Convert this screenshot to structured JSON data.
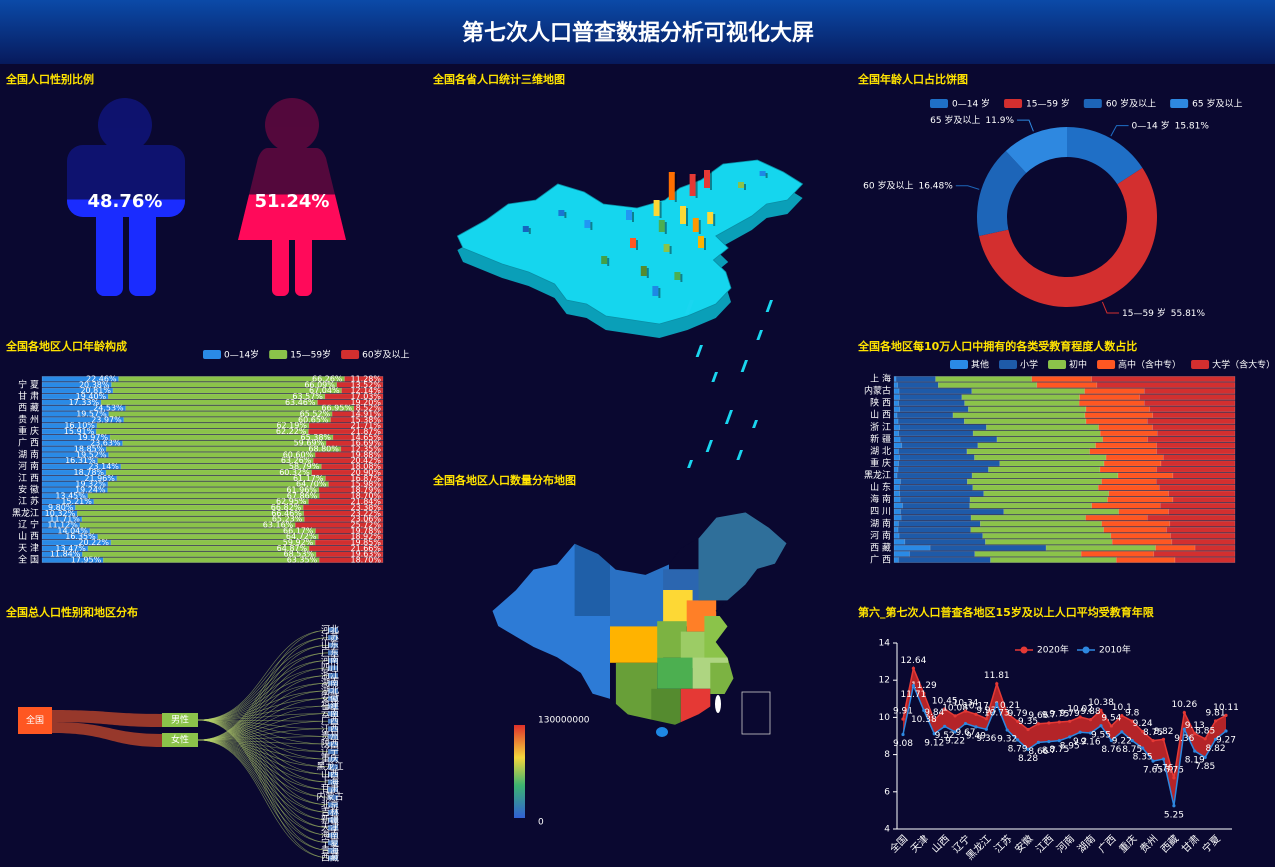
{
  "page_title": "第七次人口普查数据分析可视化大屏",
  "chart_data": [
    {
      "type": "pictorial",
      "title": "全国人口性别比例",
      "values": [
        48.76,
        51.24
      ],
      "value_labels": [
        "48.76%",
        "51.24%"
      ],
      "colors": [
        "#1a2cff",
        "#ff0a5a"
      ]
    },
    {
      "type": "map3d",
      "title": "全国各省人口统计三维地图"
    },
    {
      "type": "pie",
      "title": "全国年龄人口占比饼图",
      "categories": [
        "0—14 岁",
        "15—59 岁",
        "60 岁及以上",
        "65 岁及以上"
      ],
      "values": [
        15.81,
        55.81,
        16.48,
        11.9
      ],
      "value_labels": [
        "15.81%",
        "55.81%",
        "16.48%",
        "11.9%"
      ],
      "colors": [
        "#1f6fc6",
        "#d32f2f",
        "#1d65b8",
        "#2e88e0"
      ]
    },
    {
      "type": "stacked_hbar",
      "title": "全国各地区人口年龄构成",
      "xlim": [
        0,
        100
      ],
      "categories": [
        "全 国",
        null,
        "天 津",
        null,
        "山 西",
        null,
        "辽 宁",
        null,
        "黑龙江",
        null,
        "江 苏",
        null,
        "安 徽",
        null,
        "江 西",
        null,
        "河 南",
        null,
        "湖 南",
        null,
        "广 西",
        null,
        "重 庆",
        null,
        "贵 州",
        null,
        "西 藏",
        null,
        "甘 肃",
        null,
        "宁 夏",
        null
      ],
      "series": [
        {
          "name": "0—14岁",
          "color": "#2a8ae6",
          "values": [
            17.95,
            11.84,
            13.47,
            20.22,
            16.35,
            14.04,
            11.12,
            11.71,
            10.32,
            9.8,
            15.21,
            13.45,
            19.24,
            19.32,
            21.96,
            18.78,
            23.14,
            16.31,
            19.52,
            18.85,
            23.63,
            19.97,
            15.91,
            16.1,
            23.97,
            19.57,
            24.53,
            17.33,
            19.4,
            20.81,
            20.38,
            22.46
          ],
          "value_labels": [
            "17.95%",
            "11.84%",
            "13.47%",
            "20.22%",
            "16.35%",
            "14.04%",
            "11.12%",
            "11.71%",
            "10.32%",
            "9.80%",
            "15.21%",
            "13.45%",
            "19.24%",
            "19.32%",
            "21.96%",
            "18.78%",
            "23.14%",
            "16.31%",
            "19.52%",
            "18.85%",
            "23.63%",
            "19.97%",
            "15.91%",
            "16.10%",
            "23.97%",
            "19.57%",
            "24.53%",
            "17.33%",
            "19.40%",
            "20.81%",
            "20.38%",
            "22.46%"
          ]
        },
        {
          "name": "15—59岁",
          "color": "#8bc34a",
          "values": [
            63.35,
            68.53,
            64.87,
            59.92,
            64.72,
            66.17,
            63.16,
            65.23,
            66.46,
            66.82,
            62.95,
            67.86,
            61.96,
            64.7,
            61.17,
            60.32,
            58.79,
            63.26,
            60.6,
            68.8,
            59.69,
            65.38,
            62.22,
            62.19,
            60.65,
            65.52,
            66.95,
            63.46,
            63.57,
            67.04,
            66.09,
            66.26
          ],
          "value_labels": [
            "63.35%",
            "68.53%",
            "64.87%",
            "59.92%",
            "64.72%",
            "66.17%",
            "63.16%",
            "65.23%",
            "66.46%",
            "66.82%",
            "62.95%",
            "67.86%",
            "61.96%",
            "64.70%",
            "61.17%",
            "60.32%",
            "58.79%",
            "63.26%",
            "60.60%",
            "68.80%",
            "59.69%",
            "65.38%",
            "62.22%",
            "62.19%",
            "60.65%",
            "65.52%",
            "66.95%",
            "63.46%",
            "63.57%",
            "67.04%",
            "66.09%",
            "66.26%"
          ]
        },
        {
          "name": "60岁及以上",
          "color": "#d32f2f",
          "values": [
            18.7,
            19.63,
            21.66,
            19.85,
            18.92,
            19.78,
            25.72,
            23.06,
            23.22,
            23.38,
            21.84,
            18.7,
            18.79,
            15.98,
            16.87,
            20.9,
            18.08,
            20.42,
            19.88,
            12.35,
            16.69,
            14.65,
            21.87,
            21.71,
            15.38,
            14.91,
            8.52,
            19.2,
            17.03,
            12.14,
            13.52,
            11.28
          ],
          "value_labels": [
            "18.70%",
            "19.63%",
            "21.66%",
            "19.85%",
            "18.92%",
            "19.78%",
            "25.72%",
            "23.06%",
            "23.22%",
            "23.38%",
            "21.84%",
            "18.70%",
            "18.79%",
            "15.98%",
            "16.87%",
            "20.90%",
            "18.08%",
            "20.42%",
            "19.88%",
            "12.35%",
            "16.69%",
            "14.65%",
            "21.87%",
            "21.71%",
            "15.38%",
            "14.91%",
            "8.52%",
            "19.20%",
            "17.03%",
            "12.14%",
            "13.52%",
            "11.28%"
          ]
        }
      ]
    },
    {
      "type": "stacked_hbar",
      "title": "全国各地区每10万人口中拥有的各类受教育程度人数占比",
      "xlim": [
        0,
        100
      ],
      "categories": [
        "广 西",
        null,
        "西 藏",
        null,
        "河 南",
        null,
        "湖 南",
        null,
        "四 川",
        null,
        "海 南",
        null,
        "山 东",
        null,
        "黑龙江",
        null,
        "重 庆",
        null,
        "湖 北",
        null,
        "新 疆",
        null,
        "浙 江",
        null,
        "山 西",
        null,
        "陕 西",
        null,
        "内蒙古",
        null,
        "上 海"
      ],
      "series": [
        {
          "name": "其他",
          "color": "#2a8ae6",
          "values": [
            1.3,
            4.6,
            10.6,
            3.2,
            1.5,
            1.2,
            1.3,
            2.1,
            1.9,
            2.5,
            1.8,
            1.7,
            1.6,
            1.9,
            0.9,
            1.2,
            1.4,
            1.7,
            1.3,
            2.3,
            1.8,
            1.4,
            1.7,
            1.2,
            0.9,
            1.7,
            1.4,
            1.6,
            1.5,
            1.1,
            0.6
          ]
        },
        {
          "name": "小学",
          "color": "#1e5aa8",
          "values": [
            27.0,
            19.1,
            34.0,
            23.6,
            24.5,
            21.3,
            24.0,
            20.5,
            30.3,
            19.7,
            20.5,
            24.6,
            21.5,
            19.6,
            22.0,
            26.5,
            29.6,
            21.9,
            20.1,
            22.3,
            28.4,
            21.8,
            25.4,
            19.4,
            16.4,
            20.1,
            19.3,
            18.3,
            21.3,
            11.9,
            11.6
          ]
        },
        {
          "name": "初中",
          "color": "#8bc34a",
          "values": [
            36.9,
            31.2,
            32.1,
            37.2,
            37.6,
            39.0,
            35.6,
            33.6,
            33.7,
            35.8,
            40.3,
            36.7,
            36.8,
            39.4,
            42.8,
            32.7,
            30.6,
            38.6,
            36.0,
            34.5,
            31.0,
            37.3,
            32.9,
            35.7,
            38.7,
            34.5,
            33.6,
            34.5,
            33.1,
            28.9,
            28.2
          ]
        },
        {
          "name": "高中（含中专）",
          "color": "#ff5722",
          "values": [
            17.2,
            21.3,
            11.6,
            17.5,
            17.5,
            18.4,
            20.0,
            18.1,
            14.6,
            20.1,
            19.2,
            17.5,
            17.9,
            16.0,
            16.1,
            16.6,
            16.7,
            16.8,
            19.6,
            17.9,
            13.2,
            16.7,
            15.8,
            18.0,
            19.9,
            18.7,
            19.1,
            17.6,
            17.5,
            17.6,
            17.6
          ]
        },
        {
          "name": "大学（含大专）",
          "color": "#d32f2f",
          "values": [
            17.6,
            23.8,
            11.7,
            18.5,
            18.9,
            20.1,
            19.1,
            25.7,
            19.5,
            21.9,
            18.2,
            19.5,
            22.2,
            23.1,
            18.2,
            23.0,
            21.7,
            21.0,
            23.0,
            23.0,
            25.6,
            22.8,
            24.2,
            25.7,
            24.1,
            25.0,
            26.6,
            28.0,
            26.6,
            40.5,
            42.0
          ]
        }
      ]
    },
    {
      "type": "sankey",
      "title": "全国总人口性别和地区分布",
      "nodes": [
        "全国",
        "男性",
        "女性"
      ],
      "regions": [
        "河北",
        "江苏",
        "山东",
        "广东",
        "河南",
        "四川",
        "浙江",
        "湖南",
        "湖北",
        "安徽",
        "福建",
        "云南",
        "广西",
        "江西",
        "贵州",
        "陕西",
        "辽宁",
        "重庆",
        "黑龙江",
        "山西",
        "上海",
        "甘肃",
        "内蒙古",
        "北京",
        "吉林",
        "新疆",
        "天津",
        "海南",
        "宁夏",
        "青海",
        "西藏"
      ],
      "colors": [
        "#ff5722",
        "#8bc34a"
      ]
    },
    {
      "type": "map",
      "title": "全国各地区人口数量分布地图",
      "visual_map": {
        "min": 0,
        "max": 130000000
      }
    },
    {
      "type": "line",
      "title": "第六_第七次人口普查各地区15岁及以上人口平均受教育年限",
      "categories": [
        "全国",
        null,
        "天津",
        null,
        "山西",
        null,
        "辽宁",
        null,
        "黑龙江",
        null,
        "江苏",
        null,
        "安徽",
        null,
        "江西",
        null,
        "河南",
        null,
        "湖南",
        null,
        "广西",
        null,
        "重庆",
        null,
        "贵州",
        null,
        "西藏",
        null,
        "甘肃",
        null,
        "宁夏",
        null
      ],
      "ylim": [
        4,
        14
      ],
      "yticks": [
        4,
        6,
        8,
        10,
        12,
        14
      ],
      "series": [
        {
          "name": "2020年",
          "color": "#e53935",
          "values": [
            9.91,
            12.64,
            11.29,
            9.84,
            10.45,
            10.08,
            10.34,
            10.17,
            9.93,
            11.81,
            10.21,
            9.79,
            9.35,
            9.66,
            9.7,
            9.75,
            9.79,
            10.02,
            9.88,
            10.38,
            9.54,
            10.1,
            9.8,
            9.24,
            8.75,
            8.82,
            6.75,
            10.26,
            9.13,
            8.85,
            9.81,
            10.11
          ]
        },
        {
          "name": "2010年",
          "color": "#2e88e0",
          "values": [
            9.08,
            11.71,
            10.38,
            9.12,
            9.52,
            9.22,
            9.67,
            9.49,
            9.36,
            10.73,
            9.32,
            8.79,
            8.28,
            8.66,
            8.7,
            8.75,
            8.95,
            9.2,
            9.16,
            9.55,
            8.76,
            9.22,
            8.75,
            8.35,
            7.65,
            7.76,
            5.25,
            9.36,
            8.19,
            7.85,
            8.82,
            9.27
          ]
        }
      ]
    }
  ]
}
